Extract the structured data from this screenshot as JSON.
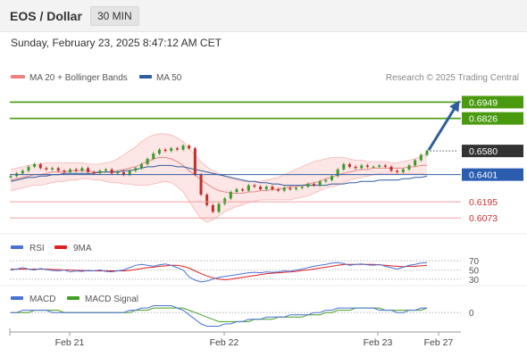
{
  "header": {
    "title": "EOS / Dollar",
    "timeframe": "30 MIN",
    "datetime": "Sunday, February 23, 2025 8:47:12 AM CET"
  },
  "legend": {
    "ma20": {
      "label": "MA 20 + Bollinger Bands",
      "color": "#f08080"
    },
    "ma50": {
      "label": "MA 50",
      "color": "#2f5d9e"
    },
    "source": "Research © 2025 Trading Central"
  },
  "rsi_legend": {
    "rsi": {
      "label": "RSI",
      "color": "#4a72d4"
    },
    "ma9": {
      "label": "9MA",
      "color": "#e02020"
    }
  },
  "macd_legend": {
    "macd": {
      "label": "MACD",
      "color": "#4a72d4"
    },
    "signal": {
      "label": "MACD Signal",
      "color": "#44a022"
    }
  },
  "chart_data": {
    "type": "candlestick",
    "y_range": [
      0.598,
      0.706
    ],
    "x_labels": [
      "Feb 21",
      "Feb 22",
      "Feb 23",
      "Feb 27"
    ],
    "levels": [
      {
        "value": 0.6949,
        "label": "0.6949",
        "kind": "resistance",
        "color": "#4a9a10"
      },
      {
        "value": 0.6826,
        "label": "0.6826",
        "kind": "resistance",
        "color": "#4a9a10"
      },
      {
        "value": 0.658,
        "label": "0.6580",
        "kind": "last",
        "color": "#333333"
      },
      {
        "value": 0.6401,
        "label": "0.6401",
        "kind": "pivot",
        "color": "#2f5d9e"
      },
      {
        "value": 0.6195,
        "label": "0.6195",
        "kind": "support",
        "color": "#e05050"
      },
      {
        "value": 0.6073,
        "label": "0.6073",
        "kind": "support",
        "color": "#e05050"
      }
    ],
    "close": [
      0.639,
      0.641,
      0.643,
      0.646,
      0.648,
      0.645,
      0.644,
      0.645,
      0.643,
      0.642,
      0.644,
      0.643,
      0.645,
      0.642,
      0.641,
      0.643,
      0.644,
      0.641,
      0.642,
      0.64,
      0.643,
      0.645,
      0.648,
      0.652,
      0.656,
      0.659,
      0.658,
      0.66,
      0.659,
      0.662,
      0.66,
      0.64,
      0.625,
      0.617,
      0.612,
      0.618,
      0.622,
      0.627,
      0.629,
      0.628,
      0.632,
      0.631,
      0.629,
      0.631,
      0.629,
      0.628,
      0.63,
      0.629,
      0.63,
      0.631,
      0.633,
      0.632,
      0.635,
      0.636,
      0.639,
      0.644,
      0.648,
      0.646,
      0.645,
      0.647,
      0.646,
      0.646,
      0.647,
      0.646,
      0.643,
      0.642,
      0.644,
      0.647,
      0.651,
      0.655,
      0.658
    ],
    "ma20": [
      0.636,
      0.637,
      0.638,
      0.639,
      0.64,
      0.64,
      0.641,
      0.642,
      0.642,
      0.642,
      0.643,
      0.643,
      0.643,
      0.643,
      0.642,
      0.642,
      0.642,
      0.642,
      0.643,
      0.644,
      0.645,
      0.646,
      0.648,
      0.65,
      0.652,
      0.653,
      0.653,
      0.652,
      0.65,
      0.647,
      0.643,
      0.64,
      0.636,
      0.633,
      0.63,
      0.628,
      0.627,
      0.626,
      0.626,
      0.626,
      0.627,
      0.627,
      0.628,
      0.628,
      0.629,
      0.629,
      0.63,
      0.631,
      0.631,
      0.632,
      0.633,
      0.634,
      0.635,
      0.637,
      0.638,
      0.64,
      0.641,
      0.642,
      0.643,
      0.644,
      0.644,
      0.645,
      0.645,
      0.645,
      0.645,
      0.645,
      0.645,
      0.646,
      0.646,
      0.647,
      0.647
    ],
    "bb_upper": [
      0.644,
      0.645,
      0.646,
      0.647,
      0.648,
      0.648,
      0.649,
      0.649,
      0.649,
      0.649,
      0.649,
      0.649,
      0.649,
      0.648,
      0.648,
      0.648,
      0.649,
      0.65,
      0.652,
      0.655,
      0.658,
      0.661,
      0.665,
      0.668,
      0.67,
      0.671,
      0.671,
      0.67,
      0.668,
      0.665,
      0.66,
      0.655,
      0.65,
      0.646,
      0.643,
      0.641,
      0.639,
      0.637,
      0.636,
      0.635,
      0.635,
      0.635,
      0.635,
      0.636,
      0.637,
      0.638,
      0.64,
      0.642,
      0.644,
      0.646,
      0.648,
      0.65,
      0.651,
      0.652,
      0.653,
      0.653,
      0.653,
      0.652,
      0.651,
      0.651,
      0.65,
      0.65,
      0.65,
      0.65,
      0.649,
      0.649,
      0.65,
      0.651,
      0.652,
      0.654,
      0.656
    ],
    "bb_lower": [
      0.628,
      0.629,
      0.63,
      0.631,
      0.632,
      0.632,
      0.633,
      0.634,
      0.635,
      0.635,
      0.636,
      0.636,
      0.637,
      0.637,
      0.636,
      0.636,
      0.635,
      0.634,
      0.634,
      0.633,
      0.633,
      0.632,
      0.632,
      0.632,
      0.633,
      0.634,
      0.635,
      0.634,
      0.631,
      0.627,
      0.62,
      0.613,
      0.607,
      0.604,
      0.606,
      0.609,
      0.612,
      0.614,
      0.616,
      0.617,
      0.619,
      0.62,
      0.621,
      0.621,
      0.621,
      0.621,
      0.621,
      0.621,
      0.622,
      0.623,
      0.624,
      0.626,
      0.628,
      0.63,
      0.631,
      0.632,
      0.634,
      0.636,
      0.637,
      0.638,
      0.639,
      0.64,
      0.641,
      0.641,
      0.641,
      0.641,
      0.641,
      0.641,
      0.641,
      0.641,
      0.64
    ],
    "ma50": [
      0.635,
      0.636,
      0.637,
      0.638,
      0.638,
      0.639,
      0.639,
      0.64,
      0.64,
      0.641,
      0.641,
      0.641,
      0.641,
      0.641,
      0.641,
      0.642,
      0.642,
      0.642,
      0.642,
      0.643,
      0.643,
      0.644,
      0.645,
      0.646,
      0.646,
      0.647,
      0.647,
      0.647,
      0.646,
      0.646,
      0.645,
      0.644,
      0.643,
      0.642,
      0.641,
      0.64,
      0.639,
      0.638,
      0.637,
      0.636,
      0.635,
      0.635,
      0.634,
      0.634,
      0.633,
      0.633,
      0.632,
      0.632,
      0.632,
      0.632,
      0.632,
      0.632,
      0.632,
      0.632,
      0.633,
      0.633,
      0.633,
      0.634,
      0.634,
      0.635,
      0.635,
      0.635,
      0.636,
      0.636,
      0.636,
      0.636,
      0.637,
      0.637,
      0.638,
      0.638,
      0.639
    ],
    "rsi": {
      "levels": [
        70,
        50,
        30
      ],
      "range": [
        20,
        80
      ],
      "rsi": [
        50,
        52,
        55,
        52,
        50,
        53,
        51,
        49,
        48,
        50,
        46,
        48,
        47,
        49,
        48,
        50,
        47,
        46,
        48,
        50,
        55,
        60,
        62,
        60,
        58,
        61,
        63,
        60,
        55,
        50,
        35,
        28,
        24,
        26,
        30,
        34,
        36,
        38,
        40,
        42,
        44,
        45,
        44,
        46,
        45,
        46,
        48,
        47,
        50,
        52,
        55,
        58,
        60,
        62,
        65,
        66,
        64,
        60,
        62,
        63,
        61,
        60,
        62,
        58,
        55,
        52,
        56,
        60,
        62,
        65,
        66
      ],
      "ma9": [
        52,
        52,
        52,
        52,
        52,
        52,
        52,
        51,
        51,
        50,
        50,
        49,
        49,
        48,
        48,
        48,
        48,
        48,
        48,
        48,
        49,
        51,
        53,
        55,
        56,
        58,
        59,
        60,
        60,
        58,
        54,
        48,
        42,
        37,
        33,
        30,
        29,
        30,
        32,
        34,
        36,
        38,
        40,
        42,
        43,
        44,
        45,
        46,
        47,
        49,
        50,
        52,
        54,
        56,
        58,
        60,
        62,
        62,
        62,
        62,
        62,
        62,
        61,
        60,
        59,
        58,
        57,
        58,
        58,
        59,
        60
      ]
    },
    "macd": {
      "zero_label": "0",
      "range": [
        -0.007,
        0.004
      ],
      "macd": [
        0.0,
        0.0,
        0.001,
        0.001,
        0.001,
        0.001,
        0.001,
        0.0,
        0.0,
        0.0,
        0.0,
        0.0,
        0.0,
        0.0,
        0.0,
        0.0,
        0.0,
        0.0,
        0.0,
        0.0,
        0.001,
        0.001,
        0.002,
        0.002,
        0.003,
        0.003,
        0.003,
        0.003,
        0.002,
        0.001,
        -0.001,
        -0.003,
        -0.005,
        -0.006,
        -0.006,
        -0.006,
        -0.005,
        -0.005,
        -0.004,
        -0.004,
        -0.003,
        -0.003,
        -0.003,
        -0.002,
        -0.002,
        -0.002,
        -0.002,
        -0.001,
        -0.001,
        -0.001,
        -0.001,
        0.0,
        0.0,
        0.001,
        0.001,
        0.002,
        0.002,
        0.002,
        0.002,
        0.002,
        0.002,
        0.002,
        0.001,
        0.001,
        0.001,
        0.0,
        0.0,
        0.001,
        0.001,
        0.002,
        0.002
      ],
      "signal": [
        0.0,
        0.0,
        0.0,
        0.0,
        0.001,
        0.001,
        0.001,
        0.001,
        0.001,
        0.0,
        0.0,
        0.0,
        0.0,
        0.0,
        0.0,
        0.0,
        0.0,
        0.0,
        0.0,
        0.0,
        0.0,
        0.001,
        0.001,
        0.001,
        0.002,
        0.002,
        0.002,
        0.002,
        0.002,
        0.002,
        0.001,
        0.0,
        -0.001,
        -0.002,
        -0.003,
        -0.004,
        -0.004,
        -0.004,
        -0.004,
        -0.004,
        -0.004,
        -0.003,
        -0.003,
        -0.003,
        -0.003,
        -0.002,
        -0.002,
        -0.002,
        -0.002,
        -0.002,
        -0.001,
        -0.001,
        -0.001,
        0.0,
        0.0,
        0.001,
        0.001,
        0.001,
        0.002,
        0.002,
        0.002,
        0.002,
        0.002,
        0.001,
        0.001,
        0.001,
        0.001,
        0.001,
        0.001,
        0.001,
        0.002
      ]
    }
  }
}
